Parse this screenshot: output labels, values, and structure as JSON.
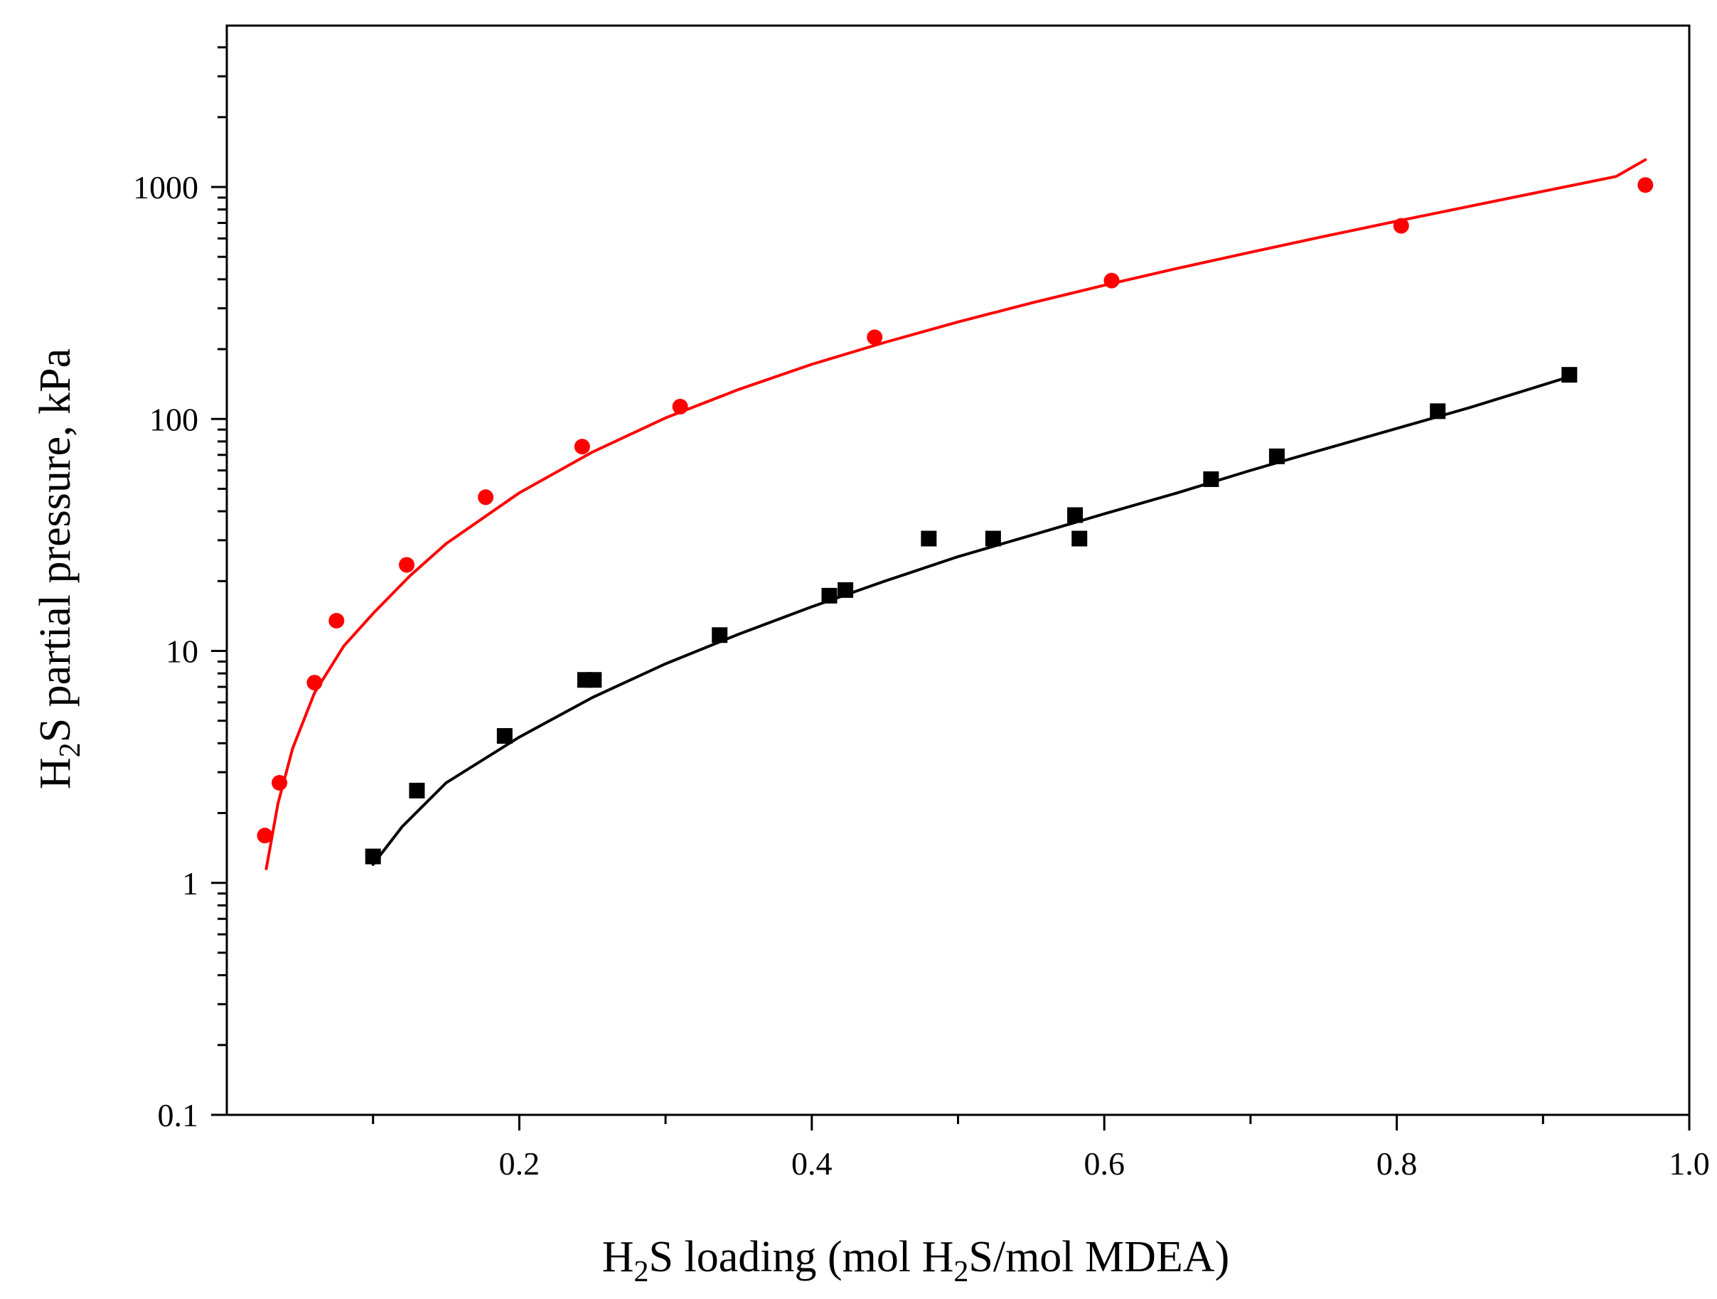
{
  "chart_data": {
    "type": "scatter",
    "title": "",
    "xlabel": {
      "prefix": "H",
      "sub": "2",
      "middle": "S loading (mol H",
      "sub2": "2",
      "suffix": "S/mol MDEA)"
    },
    "ylabel": {
      "prefix": "H",
      "sub": "2",
      "suffix": "S partial pressure, kPa"
    },
    "xlim": [
      0.0,
      1.0
    ],
    "ylim": [
      0.1,
      6000
    ],
    "yscale": "log",
    "x_ticks": [
      {
        "value": 0.2,
        "label": "0.2"
      },
      {
        "value": 0.4,
        "label": "0.4"
      },
      {
        "value": 0.6,
        "label": "0.6"
      },
      {
        "value": 0.8,
        "label": "0.8"
      },
      {
        "value": 1.0,
        "label": "1.0"
      }
    ],
    "x_minor_ticks": [
      0.1,
      0.3,
      0.5,
      0.7,
      0.9
    ],
    "y_ticks": [
      {
        "value": 0.1,
        "label": "0.1"
      },
      {
        "value": 1,
        "label": "1"
      },
      {
        "value": 10,
        "label": "10"
      },
      {
        "value": 100,
        "label": "100"
      },
      {
        "value": 1000,
        "label": "1000"
      }
    ],
    "grid": false,
    "series": [
      {
        "name": "red",
        "color": "#ff0000",
        "marker": "circle",
        "points": [
          {
            "x": 0.026,
            "y": 1.6
          },
          {
            "x": 0.036,
            "y": 2.7
          },
          {
            "x": 0.06,
            "y": 7.3
          },
          {
            "x": 0.075,
            "y": 13.5
          },
          {
            "x": 0.123,
            "y": 23.5
          },
          {
            "x": 0.177,
            "y": 46
          },
          {
            "x": 0.243,
            "y": 76
          },
          {
            "x": 0.31,
            "y": 113
          },
          {
            "x": 0.443,
            "y": 225
          },
          {
            "x": 0.605,
            "y": 395
          },
          {
            "x": 0.803,
            "y": 680
          },
          {
            "x": 0.97,
            "y": 1020
          }
        ],
        "fit": [
          {
            "x": 0.027,
            "y": 1.15
          },
          {
            "x": 0.035,
            "y": 2.2
          },
          {
            "x": 0.045,
            "y": 3.8
          },
          {
            "x": 0.06,
            "y": 6.6
          },
          {
            "x": 0.08,
            "y": 10.5
          },
          {
            "x": 0.1,
            "y": 14.5
          },
          {
            "x": 0.125,
            "y": 21
          },
          {
            "x": 0.15,
            "y": 29
          },
          {
            "x": 0.2,
            "y": 48
          },
          {
            "x": 0.25,
            "y": 72
          },
          {
            "x": 0.3,
            "y": 101
          },
          {
            "x": 0.35,
            "y": 134
          },
          {
            "x": 0.4,
            "y": 172
          },
          {
            "x": 0.45,
            "y": 214
          },
          {
            "x": 0.5,
            "y": 262
          },
          {
            "x": 0.55,
            "y": 316
          },
          {
            "x": 0.6,
            "y": 377
          },
          {
            "x": 0.65,
            "y": 446
          },
          {
            "x": 0.7,
            "y": 523
          },
          {
            "x": 0.75,
            "y": 612
          },
          {
            "x": 0.8,
            "y": 712
          },
          {
            "x": 0.85,
            "y": 826
          },
          {
            "x": 0.9,
            "y": 958
          },
          {
            "x": 0.95,
            "y": 1110
          },
          {
            "x": 0.97,
            "y": 1310
          }
        ]
      },
      {
        "name": "black",
        "color": "#000000",
        "marker": "square",
        "points": [
          {
            "x": 0.1,
            "y": 1.3
          },
          {
            "x": 0.13,
            "y": 2.5
          },
          {
            "x": 0.19,
            "y": 4.3
          },
          {
            "x": 0.245,
            "y": 7.5
          },
          {
            "x": 0.251,
            "y": 7.5
          },
          {
            "x": 0.337,
            "y": 11.7
          },
          {
            "x": 0.412,
            "y": 17.3
          },
          {
            "x": 0.423,
            "y": 18.3
          },
          {
            "x": 0.48,
            "y": 30.5
          },
          {
            "x": 0.524,
            "y": 30.5
          },
          {
            "x": 0.58,
            "y": 38.5
          },
          {
            "x": 0.583,
            "y": 30.5
          },
          {
            "x": 0.673,
            "y": 55
          },
          {
            "x": 0.718,
            "y": 69
          },
          {
            "x": 0.828,
            "y": 108
          },
          {
            "x": 0.918,
            "y": 155
          }
        ],
        "fit": [
          {
            "x": 0.1,
            "y": 1.2
          },
          {
            "x": 0.12,
            "y": 1.75
          },
          {
            "x": 0.15,
            "y": 2.7
          },
          {
            "x": 0.2,
            "y": 4.25
          },
          {
            "x": 0.25,
            "y": 6.3
          },
          {
            "x": 0.3,
            "y": 8.8
          },
          {
            "x": 0.35,
            "y": 11.8
          },
          {
            "x": 0.4,
            "y": 15.5
          },
          {
            "x": 0.45,
            "y": 20
          },
          {
            "x": 0.5,
            "y": 25.5
          },
          {
            "x": 0.55,
            "y": 31.5
          },
          {
            "x": 0.6,
            "y": 39
          },
          {
            "x": 0.65,
            "y": 48
          },
          {
            "x": 0.7,
            "y": 60
          },
          {
            "x": 0.75,
            "y": 74
          },
          {
            "x": 0.8,
            "y": 91
          },
          {
            "x": 0.85,
            "y": 112
          },
          {
            "x": 0.918,
            "y": 152
          }
        ]
      }
    ]
  }
}
